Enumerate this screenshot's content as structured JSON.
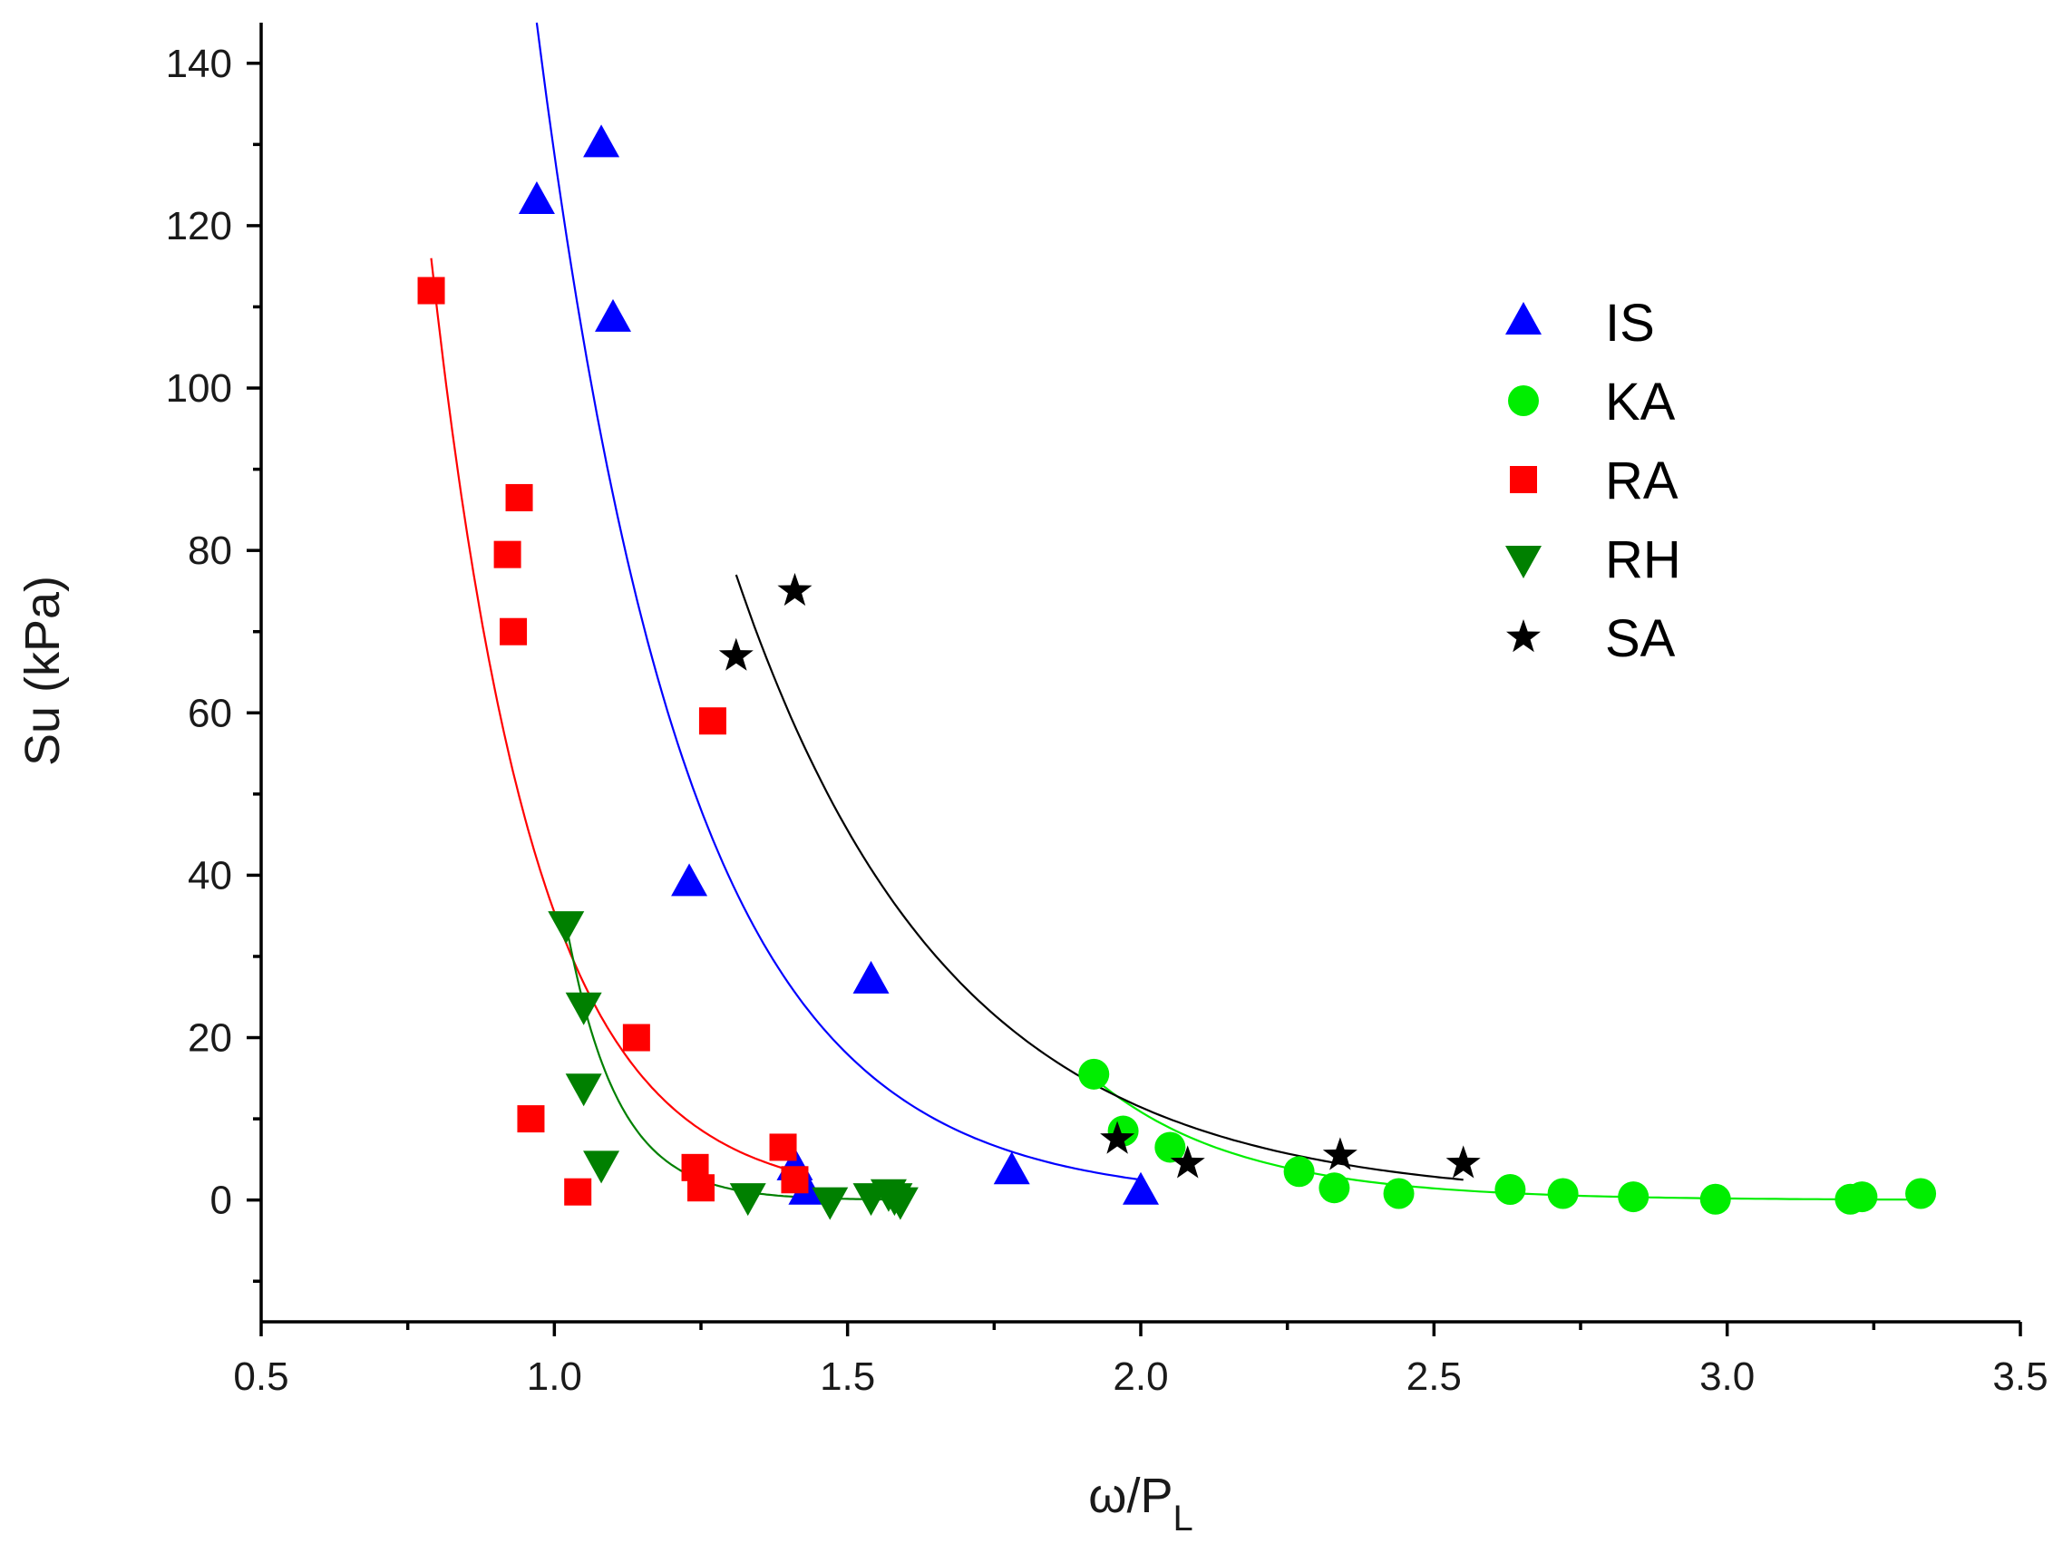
{
  "chart_data": {
    "type": "scatter",
    "title": "",
    "xlabel": "ω/P",
    "xlabel_subscript": "L",
    "ylabel": "Su (kPa)",
    "xlim": [
      0.5,
      3.5
    ],
    "ylim": [
      -15,
      145
    ],
    "x_ticks": [
      0.5,
      1.0,
      1.5,
      2.0,
      2.5,
      3.0,
      3.5
    ],
    "x_tick_labels": [
      "0.5",
      "1.0",
      "1.5",
      "2.0",
      "2.5",
      "3.0",
      "3.5"
    ],
    "y_ticks": [
      0,
      20,
      40,
      60,
      80,
      100,
      120,
      140
    ],
    "y_tick_labels": [
      "0",
      "20",
      "40",
      "60",
      "80",
      "100",
      "120",
      "140"
    ],
    "y_minor_step": 10,
    "x_minor_step": 0.25,
    "grid": false,
    "legend_position": "top-right",
    "series": [
      {
        "name": "IS",
        "marker": "triangle-up",
        "color": "#0000ff",
        "x": [
          0.97,
          1.08,
          1.1,
          1.23,
          1.54,
          1.78,
          2.0,
          1.41,
          1.43
        ],
        "y": [
          123,
          130,
          108.5,
          39,
          27,
          3.5,
          1,
          4,
          1
        ],
        "fit": {
          "x0": 0.97,
          "x1": 2.0,
          "y0": 145,
          "y1": 2.5,
          "shape": 0.27
        }
      },
      {
        "name": "KA",
        "marker": "circle",
        "color": "#00ee00",
        "x": [
          1.92,
          1.97,
          2.05,
          2.27,
          2.33,
          2.44,
          2.63,
          2.72,
          2.84,
          2.98,
          3.21,
          3.23,
          3.33
        ],
        "y": [
          15.5,
          8.5,
          6.5,
          3.5,
          1.5,
          0.8,
          1.3,
          0.8,
          0.4,
          0.1,
          0.1,
          0.4,
          0.8
        ],
        "fit": {
          "x0": 1.92,
          "x1": 3.33,
          "y0": 15,
          "y1": 0.05,
          "shape": 0.12
        }
      },
      {
        "name": "RA",
        "marker": "square",
        "color": "#ff0000",
        "x": [
          0.79,
          0.92,
          0.94,
          0.93,
          0.96,
          1.04,
          1.14,
          1.24,
          1.25,
          1.27,
          1.39,
          1.41
        ],
        "y": [
          112,
          79.5,
          86.5,
          70,
          10,
          1,
          20,
          4,
          1.5,
          59,
          6.5,
          2.5
        ],
        "fit": {
          "x0": 0.79,
          "x1": 1.41,
          "y0": 116,
          "y1": 3.5,
          "shape": 0.16
        }
      },
      {
        "name": "RH",
        "marker": "triangle-down",
        "color": "#008000",
        "x": [
          1.02,
          1.05,
          1.05,
          1.08,
          1.33,
          1.47,
          1.54,
          1.57,
          1.58,
          1.59
        ],
        "y": [
          34,
          24,
          14,
          4.5,
          0.5,
          0,
          0.5,
          1,
          0.5,
          0
        ],
        "fit": {
          "x0": 1.02,
          "x1": 1.59,
          "y0": 34,
          "y1": 0.05,
          "shape": 0.06
        }
      },
      {
        "name": "SA",
        "marker": "star",
        "color": "#000000",
        "x": [
          1.31,
          1.41,
          1.96,
          2.08,
          2.34,
          2.55
        ],
        "y": [
          67,
          75,
          7.5,
          4.5,
          5.5,
          4.5
        ],
        "fit": {
          "x0": 1.31,
          "x1": 2.55,
          "y0": 77,
          "y1": 2.5,
          "shape": 0.3
        }
      }
    ]
  }
}
